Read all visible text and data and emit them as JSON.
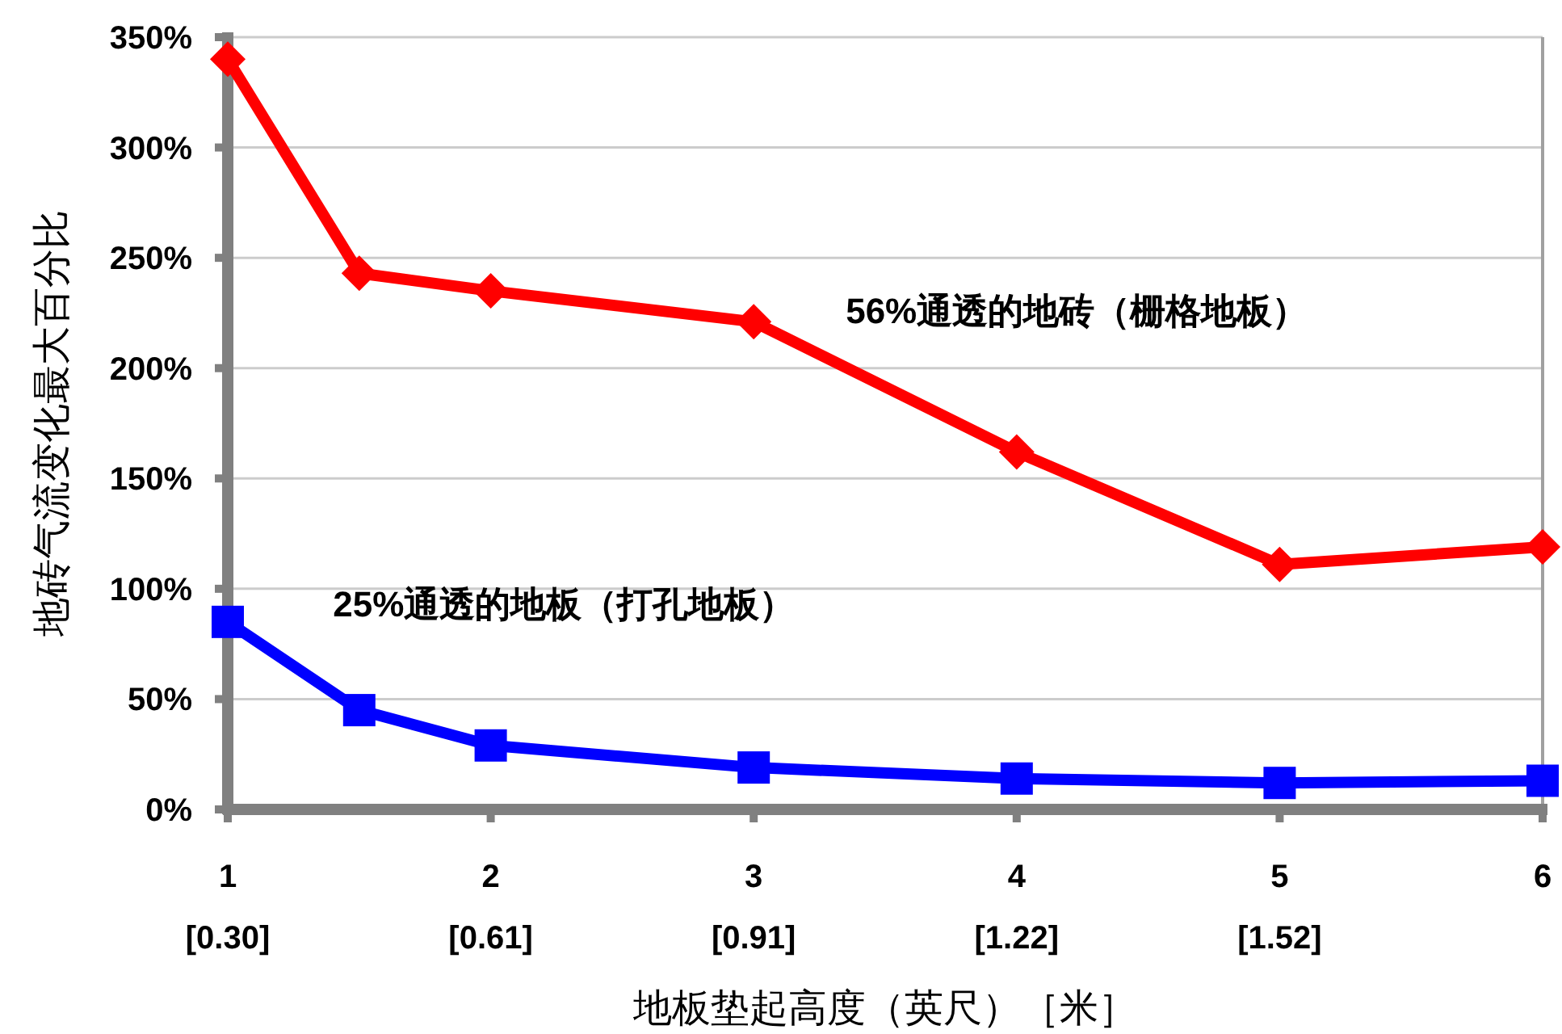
{
  "chart_data": {
    "type": "line",
    "xlabel": "地板垫起高度（英尺）［米］",
    "ylabel": "地砖气流变化最大百分比",
    "xlim": [
      1,
      6
    ],
    "xticks": [
      1,
      2,
      3,
      4,
      5,
      6
    ],
    "annotations": [
      "[0.30]",
      "[0.61]",
      "[0.91]",
      "[1.22]",
      "[1.52]"
    ],
    "ylim": [
      0,
      350
    ],
    "yticks": [
      {
        "value": 0,
        "label": "0%"
      },
      {
        "value": 50,
        "label": "50%"
      },
      {
        "value": 100,
        "label": "100%"
      },
      {
        "value": 150,
        "label": "150%"
      },
      {
        "value": 200,
        "label": "200%"
      },
      {
        "value": 250,
        "label": "250%"
      },
      {
        "value": 300,
        "label": "300%"
      },
      {
        "value": 350,
        "label": "350%"
      }
    ],
    "grid": "y",
    "x": [
      1,
      1.5,
      2,
      3,
      4,
      5,
      6
    ],
    "series": [
      {
        "name": "56%通透的地砖（栅格地板）",
        "color": "#ff0000",
        "marker": "diamond",
        "values": [
          340,
          243,
          235,
          221,
          162,
          111,
          119
        ]
      },
      {
        "name": "25%通透的地板（打孔地板）",
        "color": "#0000ff",
        "marker": "square",
        "values": [
          85,
          45,
          29,
          19,
          14,
          12,
          13
        ]
      }
    ]
  }
}
